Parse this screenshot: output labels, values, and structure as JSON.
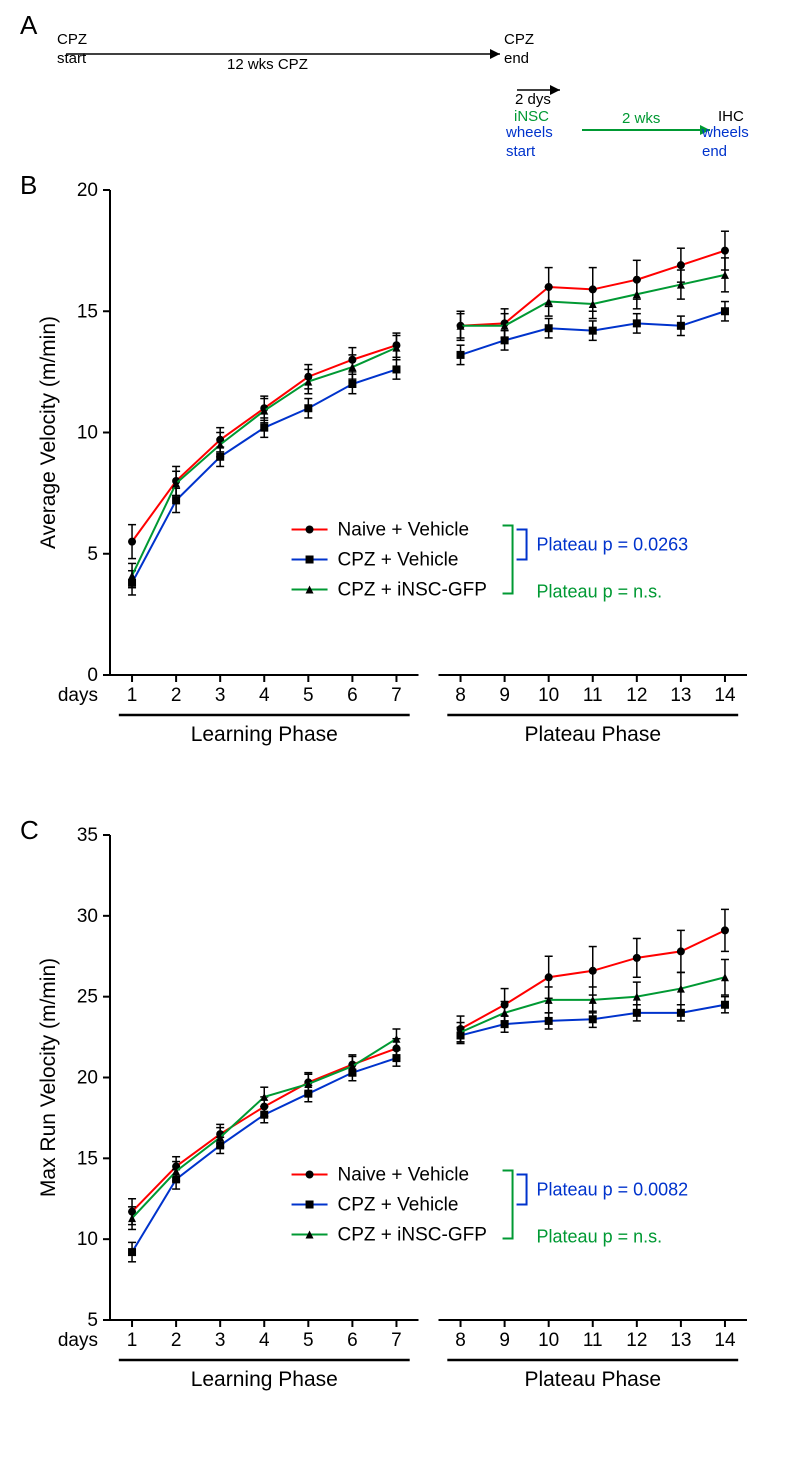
{
  "colors": {
    "naive": "#ff0000",
    "cpz_vehicle": "#0033cc",
    "cpz_insc": "#009933",
    "axis": "#000000",
    "error": "#000000",
    "bg": "#ffffff"
  },
  "panelA": {
    "label": "A",
    "cpz_start": "CPZ\nstart",
    "cpz_duration": "12 wks CPZ",
    "cpz_end": "CPZ\nend",
    "gap": "2 dys",
    "insc": "iNSC",
    "wheels_start": "wheels\nstart",
    "two_wks": "2 wks",
    "ihc": "IHC",
    "wheels_end": "wheels\nend"
  },
  "panelB": {
    "label": "B",
    "type": "line",
    "ylabel": "Average Velocity (m/min)",
    "ylim": [
      0,
      20
    ],
    "ytick_step": 5,
    "yticks": [
      0,
      5,
      10,
      15,
      20
    ],
    "x_days_label": "days",
    "x_days": [
      1,
      2,
      3,
      4,
      5,
      6,
      7,
      8,
      9,
      10,
      11,
      12,
      13,
      14
    ],
    "phase1_label": "Learning Phase",
    "phase2_label": "Plateau Phase",
    "gap_after_day": 7,
    "line_width": 2,
    "marker_size": 4,
    "error_cap": 4,
    "label_fontsize": 21,
    "tick_fontsize": 19,
    "series": [
      {
        "name": "Naive + Vehicle",
        "marker": "circle",
        "color_key": "naive",
        "y": [
          5.5,
          8.0,
          9.7,
          11.0,
          12.3,
          13.0,
          13.6,
          14.4,
          14.5,
          16.0,
          15.9,
          16.3,
          16.9,
          17.5
        ],
        "err": [
          0.7,
          0.6,
          0.5,
          0.5,
          0.5,
          0.5,
          0.5,
          0.6,
          0.6,
          0.8,
          0.9,
          0.8,
          0.7,
          0.8
        ]
      },
      {
        "name": "CPZ + Vehicle",
        "marker": "square",
        "color_key": "cpz_vehicle",
        "y": [
          3.8,
          7.2,
          9.0,
          10.2,
          11.0,
          12.0,
          12.6,
          13.2,
          13.8,
          14.3,
          14.2,
          14.5,
          14.4,
          15.0
        ],
        "err": [
          0.5,
          0.5,
          0.4,
          0.4,
          0.4,
          0.4,
          0.4,
          0.4,
          0.4,
          0.4,
          0.4,
          0.4,
          0.4,
          0.4
        ]
      },
      {
        "name": "CPZ + iNSC-GFP",
        "marker": "triangle",
        "color_key": "cpz_insc",
        "y": [
          4.1,
          7.9,
          9.5,
          10.9,
          12.1,
          12.7,
          13.5,
          14.4,
          14.4,
          15.4,
          15.3,
          15.7,
          16.1,
          16.5
        ],
        "err": [
          0.5,
          0.5,
          0.5,
          0.5,
          0.5,
          0.5,
          0.5,
          0.5,
          0.5,
          0.6,
          0.6,
          0.6,
          0.6,
          0.7
        ]
      }
    ],
    "plateau_p_blue": "Plateau p = 0.0263",
    "plateau_p_green": "Plateau p = n.s."
  },
  "panelC": {
    "label": "C",
    "type": "line",
    "ylabel": "Max Run Velocity (m/min)",
    "ylim": [
      5,
      35
    ],
    "ytick_step": 5,
    "yticks": [
      5,
      10,
      15,
      20,
      25,
      30,
      35
    ],
    "x_days_label": "days",
    "x_days": [
      1,
      2,
      3,
      4,
      5,
      6,
      7,
      8,
      9,
      10,
      11,
      12,
      13,
      14
    ],
    "phase1_label": "Learning Phase",
    "phase2_label": "Plateau Phase",
    "gap_after_day": 7,
    "line_width": 2,
    "marker_size": 4,
    "error_cap": 4,
    "label_fontsize": 21,
    "tick_fontsize": 19,
    "series": [
      {
        "name": "Naive + Vehicle",
        "marker": "circle",
        "color_key": "naive",
        "y": [
          11.7,
          14.5,
          16.5,
          18.2,
          19.7,
          20.8,
          21.8,
          23.0,
          24.5,
          26.2,
          26.6,
          27.4,
          27.8,
          29.1
        ],
        "err": [
          0.8,
          0.6,
          0.6,
          0.6,
          0.6,
          0.6,
          0.6,
          0.8,
          1.0,
          1.3,
          1.5,
          1.2,
          1.3,
          1.3
        ]
      },
      {
        "name": "CPZ + Vehicle",
        "marker": "square",
        "color_key": "cpz_vehicle",
        "y": [
          9.2,
          13.7,
          15.8,
          17.7,
          19.0,
          20.3,
          21.2,
          22.6,
          23.3,
          23.5,
          23.6,
          24.0,
          24.0,
          24.5
        ],
        "err": [
          0.6,
          0.6,
          0.5,
          0.5,
          0.5,
          0.5,
          0.5,
          0.5,
          0.5,
          0.5,
          0.5,
          0.5,
          0.5,
          0.5
        ]
      },
      {
        "name": "CPZ + iNSC-GFP",
        "marker": "triangle",
        "color_key": "cpz_insc",
        "y": [
          11.3,
          14.2,
          16.3,
          18.8,
          19.6,
          20.7,
          22.4,
          22.8,
          24.0,
          24.8,
          24.8,
          25.0,
          25.5,
          26.2
        ],
        "err": [
          0.7,
          0.6,
          0.6,
          0.6,
          0.6,
          0.6,
          0.6,
          0.6,
          0.7,
          0.8,
          0.8,
          0.9,
          1.0,
          1.1
        ]
      }
    ],
    "plateau_p_blue": "Plateau p = 0.0082",
    "plateau_p_green": "Plateau p = n.s."
  },
  "legend": {
    "naive": "Naive + Vehicle",
    "cpz_vehicle": "CPZ + Vehicle",
    "cpz_insc": "CPZ + iNSC-GFP"
  }
}
